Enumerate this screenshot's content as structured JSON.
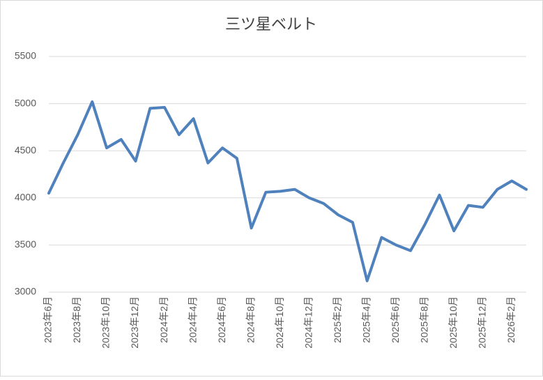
{
  "chart_data": {
    "type": "line",
    "title": "三ツ星ベルト",
    "categories": [
      "2023年6月",
      null,
      "2023年8月",
      null,
      "2023年10月",
      null,
      "2023年12月",
      null,
      "2024年2月",
      null,
      "2024年4月",
      null,
      "2024年6月",
      null,
      "2024年8月",
      null,
      "2024年10月",
      null,
      "2024年12月",
      null,
      "2025年2月",
      null,
      "2025年4月",
      null,
      "2025年6月",
      null,
      "2025年8月",
      null,
      "2025年10月",
      null,
      "2025年12月",
      null,
      "2026年2月",
      null
    ],
    "series": [
      {
        "name": "三ツ星ベルト",
        "color": "#4f81bd",
        "values": [
          4050,
          4370,
          4670,
          5020,
          4530,
          4620,
          4390,
          4950,
          4960,
          4670,
          4840,
          4370,
          4530,
          4420,
          3680,
          4060,
          4070,
          4090,
          4000,
          3940,
          3820,
          3740,
          3120,
          3580,
          3500,
          3440,
          3720,
          4030,
          3650,
          3920,
          3900,
          4090,
          4180,
          4090
        ]
      }
    ],
    "ylim": [
      3000,
      5500
    ],
    "yticks": [
      3000,
      3500,
      4000,
      4500,
      5000,
      5500
    ],
    "grid": true
  }
}
